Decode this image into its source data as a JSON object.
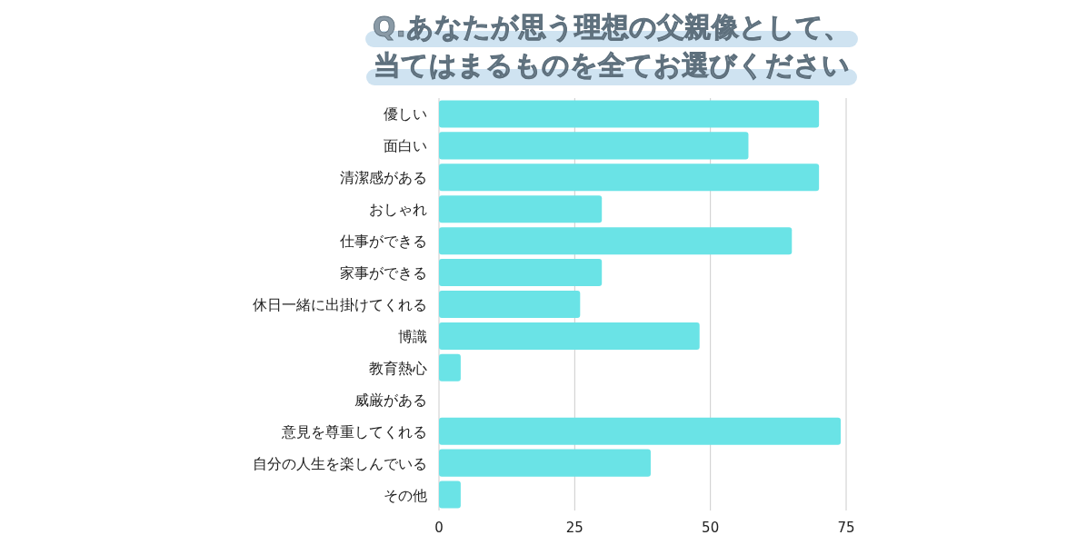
{
  "chart_data": {
    "type": "bar",
    "orientation": "horizontal",
    "title": "Q.あなたが思う理想の父親像として、",
    "subtitle": "当てはまるものを全てお選びください",
    "categories": [
      "優しい",
      "面白い",
      "清潔感がある",
      "おしゃれ",
      "仕事ができる",
      "家事ができる",
      "休日一緒に出掛けてくれる",
      "博識",
      "教育熱心",
      "威厳がある",
      "意見を尊重してくれる",
      "自分の人生を楽しんでいる",
      "その他"
    ],
    "values": [
      70,
      57,
      70,
      30,
      65,
      30,
      26,
      48,
      4,
      0,
      74,
      39,
      4
    ],
    "color": "#6ae3e6",
    "xlim": [
      0,
      75
    ],
    "xticks": [
      0,
      25,
      50,
      75
    ],
    "grid": "x"
  }
}
